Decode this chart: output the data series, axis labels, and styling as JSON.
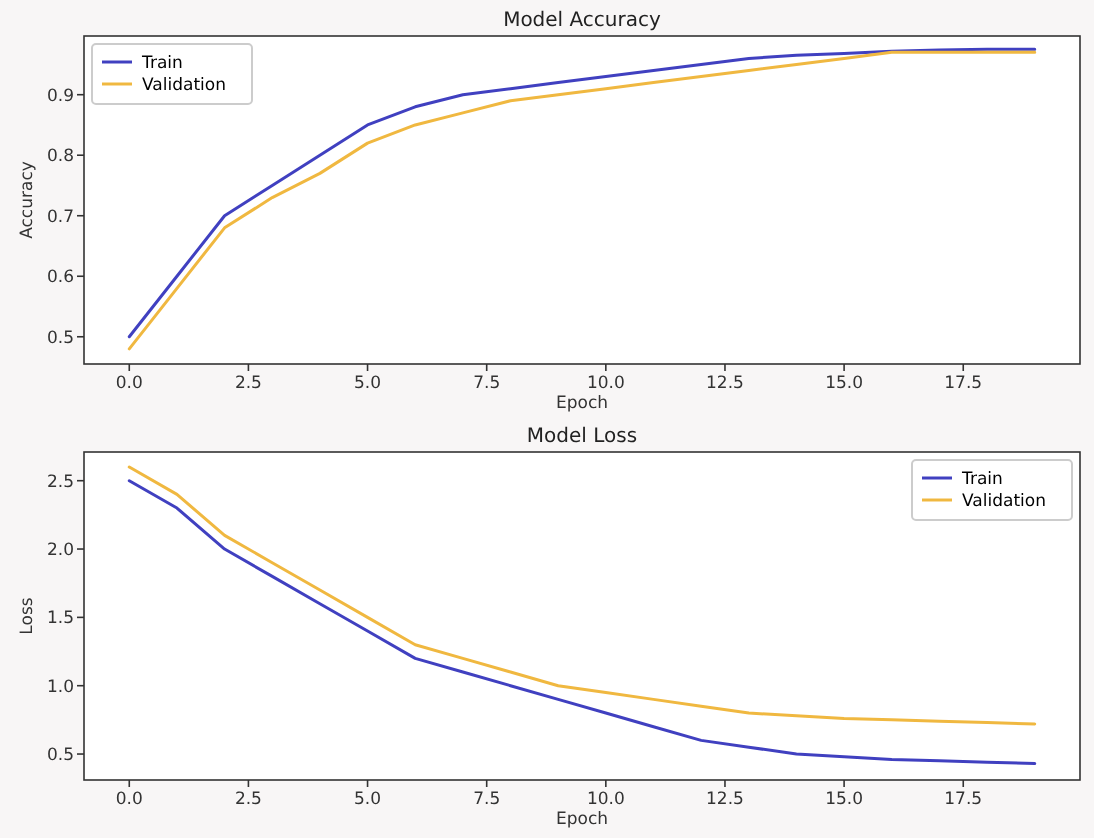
{
  "chart_data": [
    {
      "type": "line",
      "title": "Model Accuracy",
      "xlabel": "Epoch",
      "ylabel": "Accuracy",
      "x": [
        0,
        1,
        2,
        3,
        4,
        5,
        6,
        7,
        8,
        9,
        10,
        11,
        12,
        13,
        14,
        15,
        16,
        17,
        18,
        19
      ],
      "xlim": [
        -0.95,
        19.95
      ],
      "xticks": [
        {
          "value": 0,
          "label": "0.0"
        },
        {
          "value": 2.5,
          "label": "2.5"
        },
        {
          "value": 5,
          "label": "5.0"
        },
        {
          "value": 7.5,
          "label": "7.5"
        },
        {
          "value": 10,
          "label": "10.0"
        },
        {
          "value": 12.5,
          "label": "12.5"
        },
        {
          "value": 15,
          "label": "15.0"
        },
        {
          "value": 17.5,
          "label": "17.5"
        }
      ],
      "ylim": [
        0.455,
        0.997
      ],
      "yticks": [
        0.5,
        0.6,
        0.7,
        0.8,
        0.9
      ],
      "legend": "top left",
      "grid": false,
      "series": [
        {
          "name": "Train",
          "color": "#4040c0",
          "values": [
            0.5,
            0.6,
            0.7,
            0.75,
            0.8,
            0.85,
            0.88,
            0.9,
            0.91,
            0.92,
            0.93,
            0.94,
            0.95,
            0.96,
            0.965,
            0.968,
            0.972,
            0.974,
            0.975,
            0.975
          ]
        },
        {
          "name": "Validation",
          "color": "#f0b840",
          "values": [
            0.48,
            0.58,
            0.68,
            0.73,
            0.77,
            0.82,
            0.85,
            0.87,
            0.89,
            0.9,
            0.91,
            0.92,
            0.93,
            0.94,
            0.95,
            0.96,
            0.97,
            0.97,
            0.97,
            0.97
          ]
        }
      ]
    },
    {
      "type": "line",
      "title": "Model Loss",
      "xlabel": "Epoch",
      "ylabel": "Loss",
      "x": [
        0,
        1,
        2,
        3,
        4,
        5,
        6,
        7,
        8,
        9,
        10,
        11,
        12,
        13,
        14,
        15,
        16,
        17,
        18,
        19
      ],
      "xlim": [
        -0.95,
        19.95
      ],
      "xticks": [
        {
          "value": 0,
          "label": "0.0"
        },
        {
          "value": 2.5,
          "label": "2.5"
        },
        {
          "value": 5,
          "label": "5.0"
        },
        {
          "value": 7.5,
          "label": "7.5"
        },
        {
          "value": 10,
          "label": "10.0"
        },
        {
          "value": 12.5,
          "label": "12.5"
        },
        {
          "value": 15,
          "label": "15.0"
        },
        {
          "value": 17.5,
          "label": "17.5"
        }
      ],
      "ylim": [
        0.31,
        2.71
      ],
      "yticks": [
        0.5,
        {
          "value": 1,
          "label": "1.0"
        },
        1.5,
        {
          "value": 2,
          "label": "2.0"
        },
        2.5
      ],
      "legend": "top right",
      "grid": false,
      "series": [
        {
          "name": "Train",
          "color": "#4040c0",
          "values": [
            2.5,
            2.3,
            2.0,
            1.8,
            1.6,
            1.4,
            1.2,
            1.1,
            1.0,
            0.9,
            0.8,
            0.7,
            0.6,
            0.55,
            0.5,
            0.48,
            0.46,
            0.45,
            0.44,
            0.43
          ]
        },
        {
          "name": "Validation",
          "color": "#f0b840",
          "values": [
            2.6,
            2.4,
            2.1,
            1.9,
            1.7,
            1.5,
            1.3,
            1.2,
            1.1,
            1.0,
            0.95,
            0.9,
            0.85,
            0.8,
            0.78,
            0.76,
            0.75,
            0.74,
            0.73,
            0.72
          ]
        }
      ]
    }
  ]
}
